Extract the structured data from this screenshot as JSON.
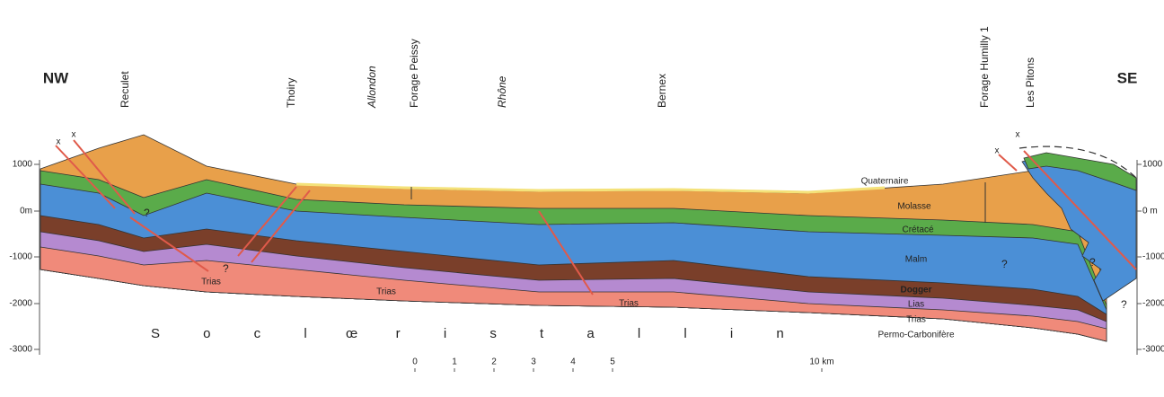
{
  "directions": {
    "left": "NW",
    "right": "SE"
  },
  "localities": [
    "Reculet",
    "Thoiry",
    "Allondon",
    "Forage Peissy",
    "Rhône",
    "Bernex",
    "Forage Humilly 1",
    "Les Pitons"
  ],
  "elevation_left": [
    "1000",
    "0m",
    "-1000",
    "-2000",
    "-3000"
  ],
  "elevation_right": [
    "1000",
    "0 m",
    "-1000",
    "-2000",
    "-3000"
  ],
  "formations": [
    "Quaternaire",
    "Molasse",
    "Crétacé",
    "Malm",
    "Dogger",
    "Lias",
    "Trias",
    "Permo-Carbonifère"
  ],
  "trias_labels": [
    "Trias",
    "Trias",
    "Trias"
  ],
  "socle": [
    "S o c l e",
    "c r i s t a l l i n"
  ],
  "unknown_marks": [
    "?",
    "?",
    "?",
    "?",
    "?"
  ],
  "fault_marks": [
    "x",
    "x",
    "x",
    "x"
  ],
  "scale": [
    "0",
    "1",
    "2",
    "3",
    "4",
    "5",
    "10 km"
  ]
}
